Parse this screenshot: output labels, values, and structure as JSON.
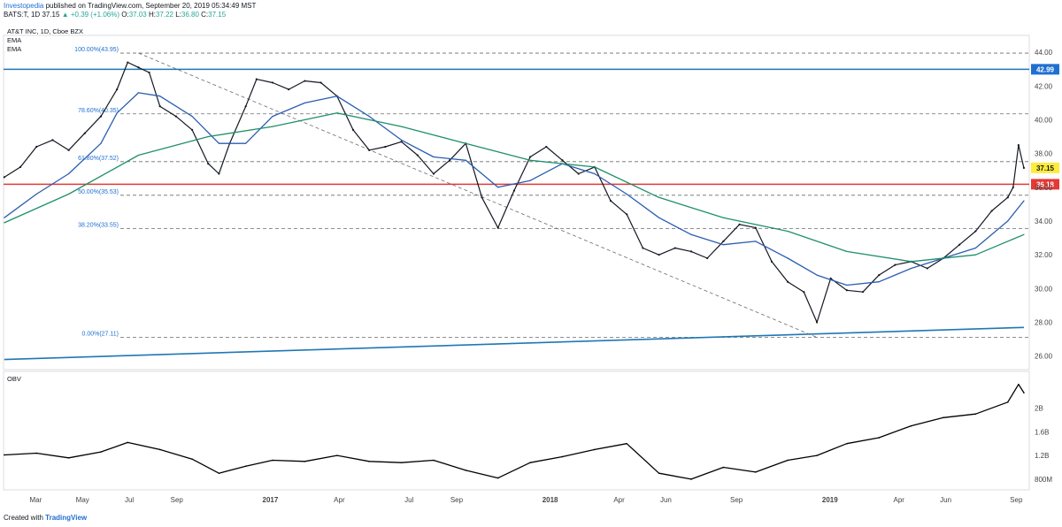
{
  "header": {
    "brand": "Investopedia",
    "published": "published on TradingView.com, September 20, 2019 05:34:49 MST",
    "symbol": "BATS:T, 1D",
    "last": "37.15",
    "change": "▲ +0.39 (+1.06%)",
    "o_label": "O:",
    "o_value": "37.03",
    "h_label": "H:",
    "h_value": "37.22",
    "l_label": "L:",
    "l_value": "36.80",
    "c_label": "C:",
    "c_value": "37.15"
  },
  "legend": {
    "title": "AT&T INC, 1D, Cboe BZX",
    "ema1": "EMA",
    "ema2": "EMA",
    "obv": "OBV"
  },
  "footer": {
    "created": "Created with",
    "tv": "TradingView"
  },
  "colors": {
    "price": "#131722",
    "ema_fast": "#2a5db0",
    "ema_slow": "#1f8f6a",
    "support": "#1f77b4",
    "resistance": "#1f77b4",
    "red_line": "#e53935",
    "fib": "#6b6b6b",
    "axis_text": "#444",
    "label_blue": "#1f6fd1",
    "label_yellow": "#ffeb3b",
    "label_red": "#e53935"
  },
  "chart_data": [
    {
      "type": "line",
      "title": "AT&T INC, 1D, Cboe BZX",
      "ylim": [
        25.2,
        45
      ],
      "y_ticks": [
        26,
        28,
        30,
        32,
        34,
        36,
        38,
        40,
        42,
        44
      ],
      "y_tick_labels": [
        "26.00",
        "28.00",
        "30.00",
        "32.00",
        "34.00",
        "36.00",
        "38.00",
        "40.00",
        "42.00",
        "44.00"
      ],
      "x_labels": [
        "Mar",
        "May",
        "Jul",
        "Sep",
        "2017",
        "Apr",
        "Jul",
        "Sep",
        "2018",
        "Apr",
        "Jun",
        "Sep",
        "2019",
        "Apr",
        "Jun",
        "Sep"
      ],
      "x_label_dates": [
        "2016-03",
        "2016-05",
        "2016-07",
        "2016-09",
        "2017-01",
        "2017-04",
        "2017-07",
        "2017-09",
        "2018-01",
        "2018-04",
        "2018-06",
        "2018-09",
        "2019-01",
        "2019-04",
        "2019-06",
        "2019-09"
      ],
      "series": [
        {
          "name": "AT&T INC",
          "x": [
            "2016-01-29",
            "2016-02-19",
            "2016-03-11",
            "2016-04-01",
            "2016-04-22",
            "2016-05-13",
            "2016-06-03",
            "2016-06-24",
            "2016-07-08",
            "2016-07-22",
            "2016-08-05",
            "2016-08-19",
            "2016-09-09",
            "2016-09-30",
            "2016-10-21",
            "2016-11-04",
            "2016-11-18",
            "2016-12-09",
            "2016-12-23",
            "2017-01-13",
            "2017-02-03",
            "2017-02-24",
            "2017-03-17",
            "2017-04-07",
            "2017-04-28",
            "2017-05-19",
            "2017-06-09",
            "2017-06-30",
            "2017-07-21",
            "2017-08-11",
            "2017-09-01",
            "2017-09-22",
            "2017-10-13",
            "2017-11-03",
            "2017-11-24",
            "2017-12-15",
            "2018-01-05",
            "2018-01-26",
            "2018-02-16",
            "2018-03-09",
            "2018-03-30",
            "2018-04-20",
            "2018-05-11",
            "2018-06-01",
            "2018-06-22",
            "2018-07-13",
            "2018-08-03",
            "2018-08-24",
            "2018-09-14",
            "2018-10-05",
            "2018-10-26",
            "2018-11-16",
            "2018-12-07",
            "2018-12-24",
            "2019-01-11",
            "2019-02-01",
            "2019-02-22",
            "2019-03-15",
            "2019-04-05",
            "2019-04-26",
            "2019-05-17",
            "2019-06-07",
            "2019-06-28",
            "2019-07-19",
            "2019-08-09",
            "2019-08-30",
            "2019-09-06",
            "2019-09-13",
            "2019-09-20"
          ],
          "values": [
            36.6,
            37.2,
            38.4,
            38.8,
            38.2,
            39.2,
            40.2,
            41.8,
            43.4,
            43.1,
            42.8,
            40.8,
            40.2,
            39.4,
            37.4,
            36.8,
            38.6,
            40.8,
            42.4,
            42.2,
            41.8,
            42.3,
            42.2,
            41.4,
            39.4,
            38.2,
            38.4,
            38.7,
            37.9,
            36.8,
            37.6,
            38.6,
            35.4,
            33.6,
            35.8,
            37.8,
            38.4,
            37.6,
            36.8,
            37.2,
            35.2,
            34.4,
            32.4,
            32.0,
            32.4,
            32.2,
            31.8,
            32.8,
            33.8,
            33.6,
            31.6,
            30.4,
            29.8,
            28.0,
            30.6,
            29.9,
            29.8,
            30.8,
            31.4,
            31.6,
            31.2,
            31.8,
            32.6,
            33.4,
            34.6,
            35.4,
            36.0,
            38.5,
            37.15
          ]
        },
        {
          "name": "EMA",
          "x": [
            "2016-01-29",
            "2016-03-11",
            "2016-04-22",
            "2016-06-03",
            "2016-06-24",
            "2016-07-22",
            "2016-08-19",
            "2016-09-30",
            "2016-11-04",
            "2016-12-09",
            "2017-01-13",
            "2017-02-24",
            "2017-04-07",
            "2017-05-19",
            "2017-06-30",
            "2017-08-11",
            "2017-09-22",
            "2017-11-03",
            "2017-12-15",
            "2018-01-26",
            "2018-03-09",
            "2018-04-20",
            "2018-06-01",
            "2018-07-13",
            "2018-08-24",
            "2018-10-05",
            "2018-11-16",
            "2018-12-24",
            "2019-02-01",
            "2019-03-15",
            "2019-04-26",
            "2019-06-07",
            "2019-07-19",
            "2019-08-30",
            "2019-09-20"
          ],
          "values": [
            34.2,
            35.6,
            36.8,
            38.6,
            40.4,
            41.6,
            41.4,
            40.2,
            38.6,
            38.6,
            40.2,
            41.0,
            41.4,
            40.2,
            38.8,
            37.8,
            37.6,
            36.0,
            36.4,
            37.4,
            36.8,
            35.6,
            34.2,
            33.2,
            32.6,
            32.8,
            31.8,
            30.8,
            30.2,
            30.4,
            31.2,
            31.8,
            32.4,
            34.0,
            35.2
          ]
        },
        {
          "name": "EMA",
          "x": [
            "2016-01-29",
            "2016-04-22",
            "2016-07-22",
            "2016-10-21",
            "2017-01-13",
            "2017-04-07",
            "2017-06-30",
            "2017-09-22",
            "2017-12-15",
            "2018-03-09",
            "2018-06-01",
            "2018-08-24",
            "2018-11-16",
            "2019-02-01",
            "2019-04-26",
            "2019-07-19",
            "2019-09-20"
          ],
          "values": [
            33.9,
            35.6,
            37.9,
            39.0,
            39.6,
            40.4,
            39.6,
            38.6,
            37.6,
            37.2,
            35.4,
            34.2,
            33.4,
            32.2,
            31.6,
            32.0,
            33.2
          ]
        }
      ],
      "annotations": {
        "horizontal_lines": [
          {
            "price": 42.99,
            "label": "42.99",
            "style": "solid-blue"
          },
          {
            "price": 36.18,
            "label": "36.18",
            "style": "solid-red"
          },
          {
            "price": 37.15,
            "label": "37.15",
            "style": "last-price"
          }
        ],
        "fibonacci": [
          {
            "level": "100.00%(43.95)",
            "price": 43.95
          },
          {
            "level": "78.60%(40.35)",
            "price": 40.35
          },
          {
            "level": "61.80%(37.52)",
            "price": 37.52
          },
          {
            "level": "50.00%(35.53)",
            "price": 35.53
          },
          {
            "level": "38.20%(33.55)",
            "price": 33.55
          },
          {
            "level": "0.00%(27.11)",
            "price": 27.11
          }
        ],
        "trendlines": [
          {
            "style": "solid-blue",
            "from": {
              "x": "2016-01-29",
              "price": 25.8
            },
            "to": {
              "x": "2019-09-20",
              "price": 27.7
            }
          },
          {
            "style": "dashed",
            "from": {
              "x": "2016-07-22",
              "price": 43.95
            },
            "to": {
              "x": "2018-12-24",
              "price": 27.11
            }
          }
        ]
      }
    },
    {
      "type": "line",
      "title": "OBV",
      "ylim": [
        0.62,
        2.62
      ],
      "y_ticks": [
        0.8,
        1.2,
        1.6,
        2.0
      ],
      "y_tick_labels": [
        "800M",
        "1.2B",
        "1.6B",
        "2B"
      ],
      "series": [
        {
          "name": "OBV",
          "x": [
            "2016-01-29",
            "2016-03-11",
            "2016-04-22",
            "2016-06-03",
            "2016-07-08",
            "2016-08-19",
            "2016-09-30",
            "2016-11-04",
            "2016-12-09",
            "2017-01-13",
            "2017-02-24",
            "2017-04-07",
            "2017-05-19",
            "2017-06-30",
            "2017-08-11",
            "2017-09-22",
            "2017-11-03",
            "2017-12-15",
            "2018-01-26",
            "2018-03-09",
            "2018-04-20",
            "2018-06-01",
            "2018-07-13",
            "2018-08-24",
            "2018-10-05",
            "2018-11-16",
            "2018-12-24",
            "2019-02-01",
            "2019-03-15",
            "2019-04-26",
            "2019-06-07",
            "2019-07-19",
            "2019-08-30",
            "2019-09-13",
            "2019-09-20"
          ],
          "values": [
            1.21,
            1.24,
            1.16,
            1.26,
            1.42,
            1.3,
            1.14,
            0.9,
            1.02,
            1.12,
            1.1,
            1.2,
            1.1,
            1.08,
            1.12,
            0.95,
            0.82,
            1.08,
            1.18,
            1.3,
            1.4,
            0.9,
            0.8,
            1.0,
            0.92,
            1.12,
            1.2,
            1.4,
            1.5,
            1.7,
            1.84,
            1.9,
            2.1,
            2.4,
            2.26
          ]
        }
      ]
    }
  ]
}
